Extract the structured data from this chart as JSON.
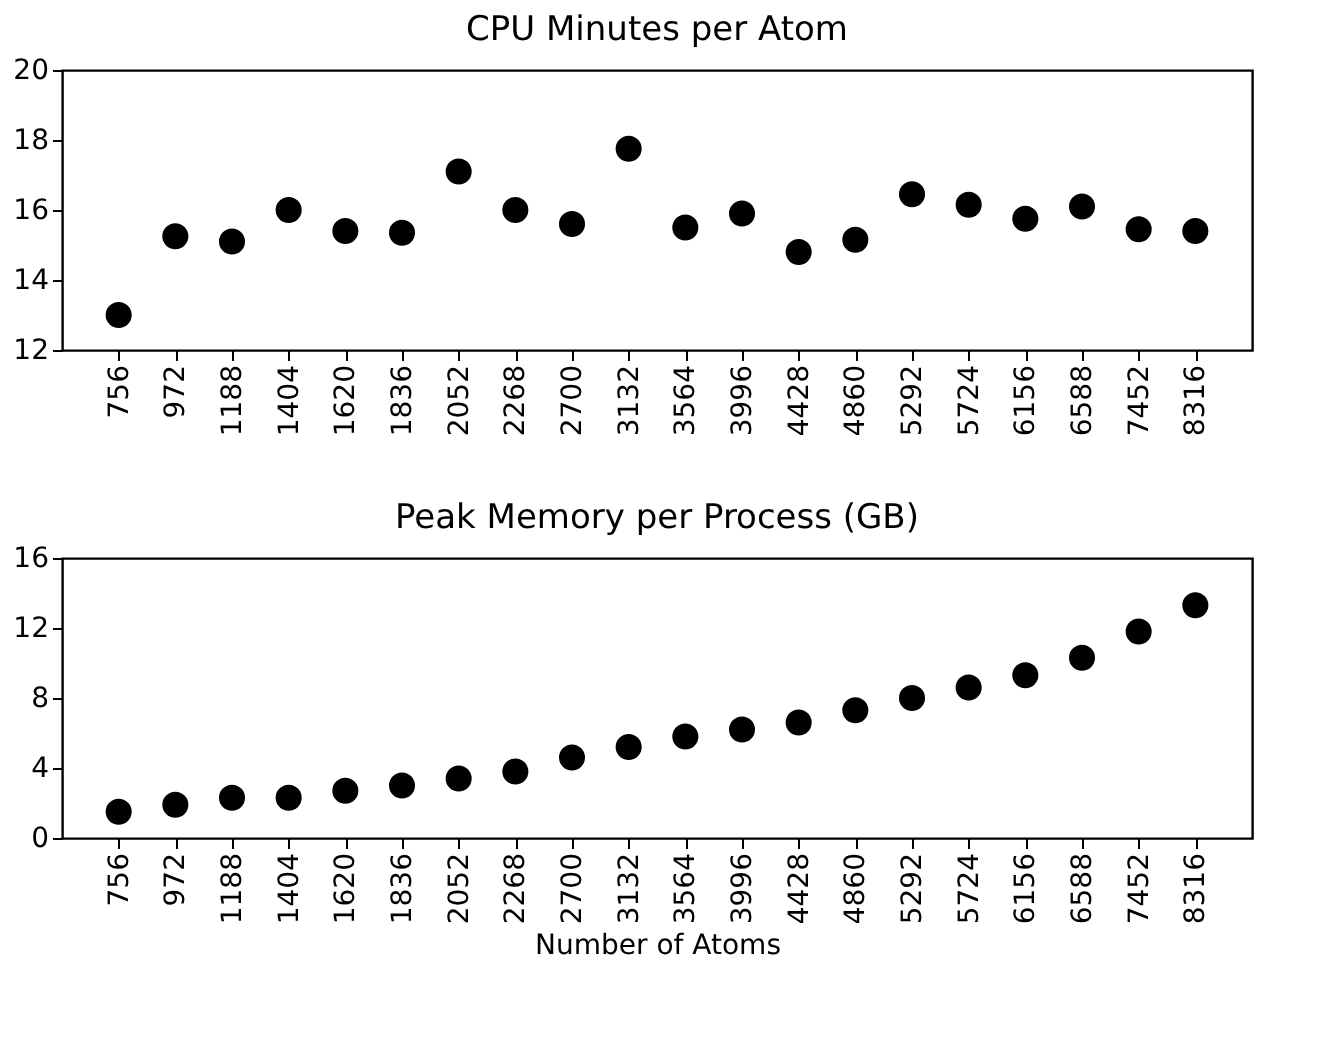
{
  "chart_data": [
    {
      "type": "scatter",
      "title": "CPU Minutes per Atom",
      "categories": [
        "756",
        "972",
        "1188",
        "1404",
        "1620",
        "1836",
        "2052",
        "2268",
        "2700",
        "3132",
        "3564",
        "3996",
        "4428",
        "4860",
        "5292",
        "5724",
        "6156",
        "6588",
        "7452",
        "8316"
      ],
      "series": [
        {
          "color": "#000000",
          "values": [
            13.0,
            15.25,
            15.1,
            16.0,
            15.4,
            15.35,
            17.1,
            16.0,
            15.6,
            17.75,
            15.5,
            15.9,
            14.8,
            15.15,
            16.45,
            16.15,
            15.75,
            16.1,
            15.45,
            15.4
          ]
        }
      ],
      "ylim": [
        12,
        20
      ],
      "yticks": [
        12,
        14,
        16,
        18,
        20
      ],
      "grid": false,
      "marker": "circle"
    },
    {
      "type": "scatter",
      "title": "Peak Memory per Process (GB)",
      "xlabel": "Number of Atoms",
      "categories": [
        "756",
        "972",
        "1188",
        "1404",
        "1620",
        "1836",
        "2052",
        "2268",
        "2700",
        "3132",
        "3564",
        "3996",
        "4428",
        "4860",
        "5292",
        "5724",
        "6156",
        "6588",
        "7452",
        "8316"
      ],
      "series": [
        {
          "color": "#000000",
          "values": [
            1.5,
            1.9,
            2.3,
            2.3,
            2.7,
            3.0,
            3.4,
            3.8,
            4.6,
            5.2,
            5.8,
            6.2,
            6.6,
            7.3,
            8.0,
            8.6,
            9.3,
            10.3,
            11.8,
            13.3
          ]
        }
      ],
      "ylim": [
        0,
        16
      ],
      "yticks": [
        0,
        4,
        8,
        12,
        16
      ],
      "grid": false,
      "marker": "circle"
    }
  ]
}
